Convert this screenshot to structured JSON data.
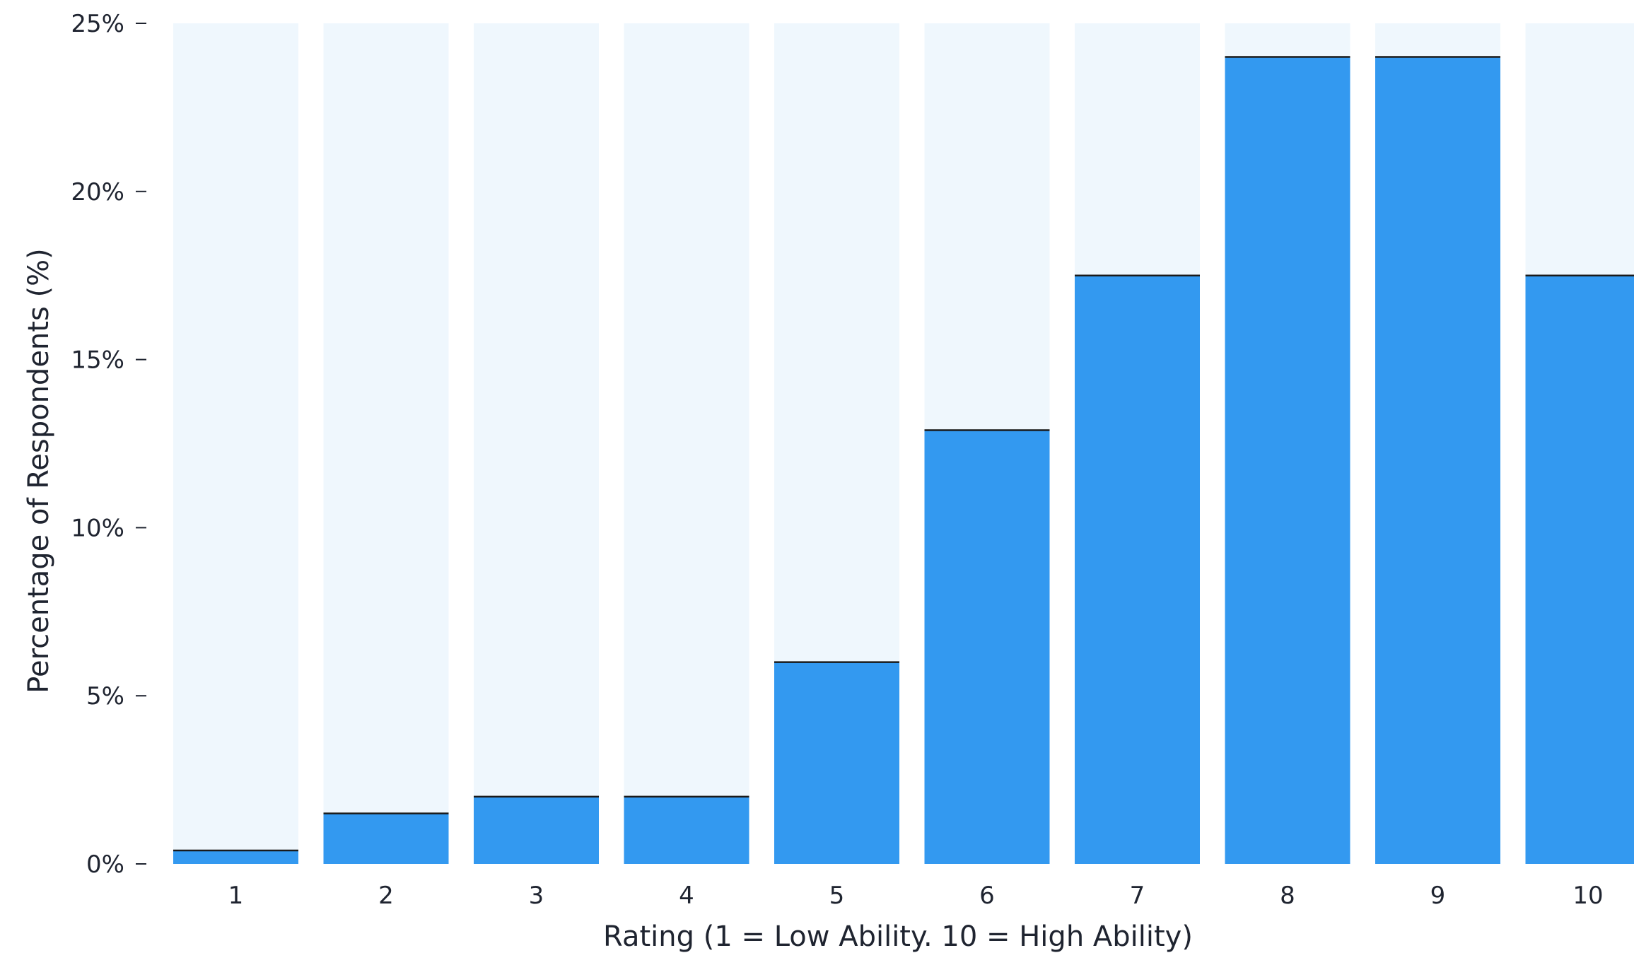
{
  "chart_data": {
    "type": "bar",
    "title": "",
    "xlabel": "Rating (1 = Low Ability. 10 = High Ability)",
    "ylabel": "Percentage of Respondents (%)",
    "categories": [
      "1",
      "2",
      "3",
      "4",
      "5",
      "6",
      "7",
      "8",
      "9",
      "10"
    ],
    "values": [
      0.4,
      1.5,
      2.0,
      2.0,
      6.0,
      12.9,
      17.5,
      24.0,
      24.0,
      17.5
    ],
    "ylim": [
      0,
      25
    ],
    "y_ticks": [
      0,
      5,
      10,
      15,
      20,
      25
    ],
    "y_tick_labels": [
      "0%",
      "5%",
      "10%",
      "15%",
      "20%",
      "25%"
    ],
    "grid": false,
    "legend": "none",
    "colors": {
      "bar": "#3399f0",
      "bar_background": "#eff7fd",
      "bar_top_line": "#1a1a1a",
      "text": "#1f2430",
      "tick": "#1f2430"
    }
  }
}
